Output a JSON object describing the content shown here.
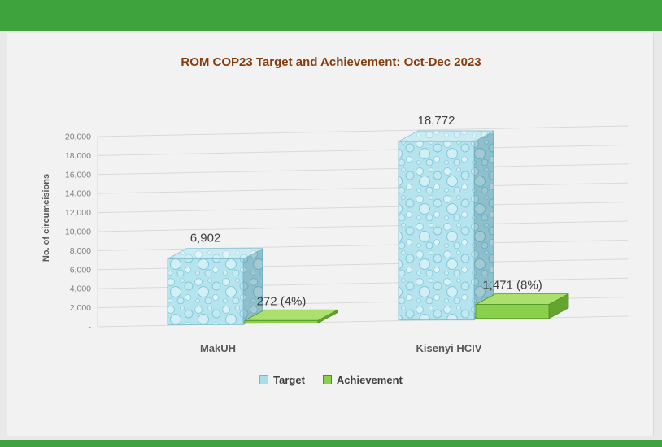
{
  "page": {
    "background": "#E9E9E9",
    "chart_background": "#F2F2F2",
    "accent_green": "#3FA33D"
  },
  "chart_data": {
    "type": "bar",
    "variant": "3d-clustered",
    "title": "ROM COP23 Target and Achievement: Oct-Dec 2023",
    "xlabel": "",
    "ylabel": "No. of circumcisions",
    "categories": [
      "MakUH",
      "Kisenyi HCIV"
    ],
    "series": [
      {
        "name": "Target",
        "values": [
          6902,
          18772
        ],
        "labels": [
          "6,902",
          "18,772"
        ]
      },
      {
        "name": "Achievement",
        "values": [
          272,
          1471
        ],
        "labels": [
          "272 (4%)",
          "1,471 (8%)"
        ]
      }
    ],
    "ylim": [
      0,
      20000
    ],
    "ytick_step": 2000,
    "ytick_labels": [
      "-",
      "2,000",
      "4,000",
      "6,000",
      "8,000",
      "10,000",
      "12,000",
      "14,000",
      "16,000",
      "18,000",
      "20,000"
    ],
    "grid": true,
    "legend_position": "bottom",
    "colors": {
      "title": "#843C0C",
      "axis_text": "#7F7F7F",
      "axis_title_text": "#595959",
      "label_text": "#3F3F3F",
      "gridline": "#D9D9D9",
      "target_swatch": "#A9DDE9",
      "target_edge": "#74B9CB",
      "achievement": "#8BD04A",
      "achievement_top": "#ABDF70",
      "achievement_side": "#63A52D",
      "achievement_edge": "#4F8F22"
    }
  }
}
